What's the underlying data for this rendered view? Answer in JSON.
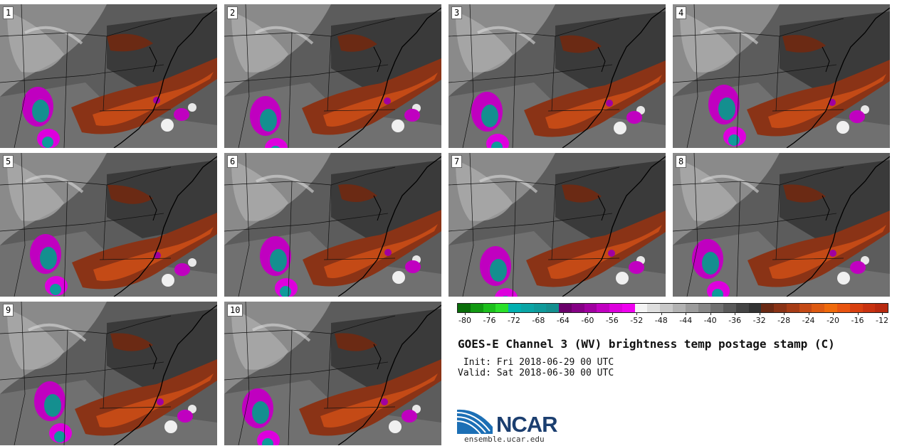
{
  "stamps": [
    {
      "label": "1"
    },
    {
      "label": "2"
    },
    {
      "label": "3"
    },
    {
      "label": "4"
    },
    {
      "label": "5"
    },
    {
      "label": "6"
    },
    {
      "label": "7"
    },
    {
      "label": "8"
    },
    {
      "label": "9"
    },
    {
      "label": "10"
    }
  ],
  "colorbar": {
    "ticks": [
      "-80",
      "-76",
      "-72",
      "-68",
      "-64",
      "-60",
      "-56",
      "-52",
      "-48",
      "-44",
      "-40",
      "-36",
      "-32",
      "-28",
      "-24",
      "-20",
      "-16",
      "-12"
    ],
    "colors": [
      "#0a6e0a",
      "#129912",
      "#1cbf1c",
      "#2ae02a",
      "#00b0b0",
      "#0aa5a5",
      "#0f9a9a",
      "#148f8f",
      "#6a006a",
      "#850085",
      "#a000a0",
      "#c000c0",
      "#dd00dd",
      "#f000f0",
      "#f4f4f4",
      "#dedede",
      "#c8c8c8",
      "#b2b2b2",
      "#9c9c9c",
      "#868686",
      "#707070",
      "#5a5a5a",
      "#444444",
      "#333333",
      "#6b2a14",
      "#8a3316",
      "#a63c16",
      "#c44a16",
      "#dd5a12",
      "#ef6a0c",
      "#e85410",
      "#d84010",
      "#c83210",
      "#b82a10"
    ]
  },
  "title": "GOES-E Channel 3 (WV) brightness temp postage stamp (C)",
  "init_line": " Init: Fri 2018-06-29 00 UTC",
  "valid_line": "Valid: Sat 2018-06-30 00 UTC",
  "logo_text": "NCAR",
  "site": "ensemble.ucar.edu"
}
